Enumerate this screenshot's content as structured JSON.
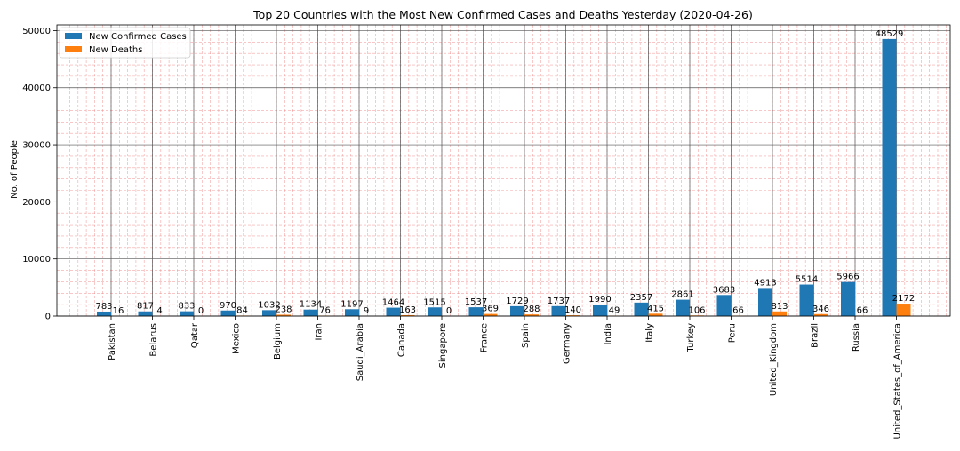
{
  "chart_data": {
    "type": "bar",
    "title": "Top 20 Countries with the Most New Confirmed Cases and Deaths Yesterday (2020-04-26)",
    "xlabel": "",
    "ylabel": "No. of People",
    "ylim": [
      0,
      51000
    ],
    "yticks": [
      0,
      10000,
      20000,
      30000,
      40000,
      50000
    ],
    "grid": true,
    "legend_position": "top-left",
    "categories": [
      "Pakistan",
      "Belarus",
      "Qatar",
      "Mexico",
      "Belgium",
      "Iran",
      "Saudi_Arabia",
      "Canada",
      "Singapore",
      "France",
      "Spain",
      "Germany",
      "India",
      "Italy",
      "Turkey",
      "Peru",
      "United_Kingdom",
      "Brazil",
      "Russia",
      "United_States_of_America"
    ],
    "series": [
      {
        "name": "New Confirmed Cases",
        "color": "#1f77b4",
        "values": [
          783,
          817,
          833,
          970,
          1032,
          1134,
          1197,
          1464,
          1515,
          1537,
          1729,
          1737,
          1990,
          2357,
          2861,
          3683,
          4913,
          5514,
          5966,
          48529
        ]
      },
      {
        "name": "New Deaths",
        "color": "#ff7f0e",
        "values": [
          16,
          4,
          0,
          84,
          238,
          76,
          9,
          163,
          0,
          369,
          288,
          140,
          49,
          415,
          106,
          66,
          813,
          346,
          66,
          2172
        ]
      }
    ]
  }
}
